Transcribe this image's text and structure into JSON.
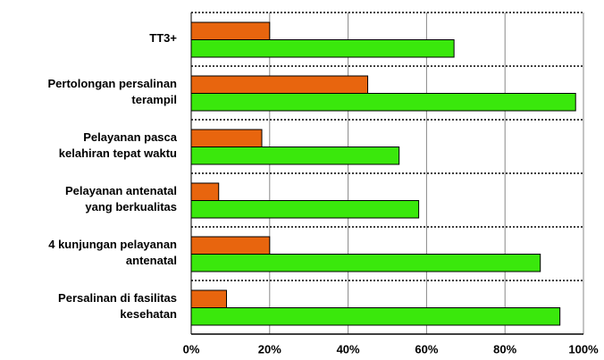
{
  "chart_data": {
    "type": "barh",
    "categories": [
      "TT3+",
      "Pertolongan persalinan\nterampil",
      "Pelayanan pasca\nkelahiran tepat waktu",
      "Pelayanan antenatal\nyang berkualitas",
      "4 kunjungan pelayanan\nantenatal",
      "Persalinan di fasilitas\nkesehatan"
    ],
    "series": [
      {
        "color": "#e8650e",
        "values": [
          20,
          45,
          18,
          7,
          20,
          9
        ]
      },
      {
        "color": "#3ae80c",
        "values": [
          67,
          98,
          53,
          58,
          89,
          94
        ]
      }
    ],
    "xlim": [
      0,
      100
    ],
    "xticks": [
      {
        "value": 0,
        "label": "0%"
      },
      {
        "value": 20,
        "label": "20%"
      },
      {
        "value": 40,
        "label": "40%"
      },
      {
        "value": 60,
        "label": "60%"
      },
      {
        "value": 80,
        "label": "80%"
      },
      {
        "value": 100,
        "label": "100%"
      }
    ],
    "grid": true
  }
}
